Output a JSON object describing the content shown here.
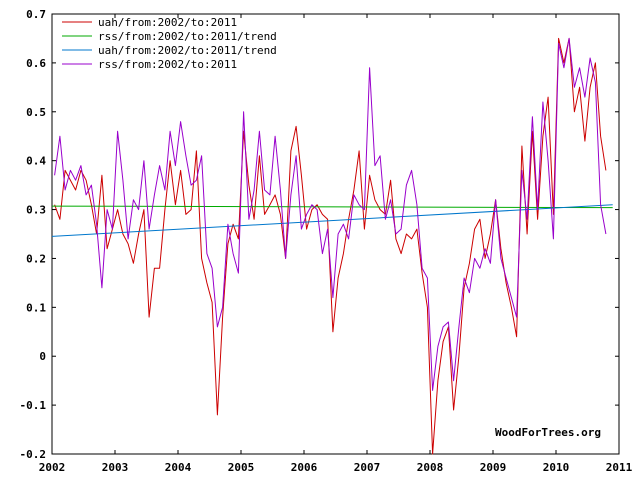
{
  "chart_data": {
    "type": "line",
    "title": "",
    "xlabel": "",
    "ylabel": "",
    "xlim": [
      2002,
      2011
    ],
    "ylim": [
      -0.2,
      0.7
    ],
    "grid": false,
    "legend_position": "top-left",
    "x_ticks": [
      "2002",
      "2003",
      "2004",
      "2005",
      "2006",
      "2007",
      "2008",
      "2009",
      "2010",
      "2011"
    ],
    "y_ticks": [
      "-0.2",
      "-0.1",
      "0",
      "0.1",
      "0.2",
      "0.3",
      "0.4",
      "0.5",
      "0.6",
      "0.7"
    ],
    "watermark": "WoodForTrees.org",
    "series": [
      {
        "name": "uah/from:2002/to:2011",
        "color": "#cc0000",
        "x_start": 2002.0417,
        "x_step": 0.08333,
        "values": [
          0.31,
          0.28,
          0.38,
          0.36,
          0.34,
          0.38,
          0.36,
          0.31,
          0.25,
          0.37,
          0.22,
          0.26,
          0.3,
          0.25,
          0.23,
          0.19,
          0.25,
          0.3,
          0.08,
          0.18,
          0.18,
          0.3,
          0.4,
          0.31,
          0.38,
          0.29,
          0.3,
          0.42,
          0.2,
          0.15,
          0.11,
          -0.12,
          0.08,
          0.23,
          0.27,
          0.24,
          0.46,
          0.35,
          0.28,
          0.41,
          0.29,
          0.31,
          0.33,
          0.29,
          0.2,
          0.42,
          0.47,
          0.37,
          0.26,
          0.3,
          0.31,
          0.29,
          0.28,
          0.05,
          0.16,
          0.21,
          0.28,
          0.34,
          0.42,
          0.26,
          0.37,
          0.32,
          0.3,
          0.29,
          0.36,
          0.24,
          0.21,
          0.25,
          0.24,
          0.26,
          0.17,
          0.1,
          -0.2,
          -0.05,
          0.03,
          0.06,
          -0.11,
          0.0,
          0.14,
          0.19,
          0.26,
          0.28,
          0.2,
          0.25,
          0.32,
          0.22,
          0.15,
          0.1,
          0.04,
          0.43,
          0.25,
          0.46,
          0.28,
          0.45,
          0.53,
          0.29,
          0.65,
          0.6,
          0.65,
          0.5,
          0.55,
          0.44,
          0.55,
          0.6,
          0.45,
          0.38
        ]
      },
      {
        "name": "rss/from:2002/to:2011/trend",
        "color": "#00aa00",
        "x_start": 2002.0,
        "x_end": 2010.9,
        "y_start": 0.307,
        "y_end": 0.304
      },
      {
        "name": "uah/from:2002/to:2011/trend",
        "color": "#0077cc",
        "x_start": 2002.0,
        "x_end": 2010.9,
        "y_start": 0.245,
        "y_end": 0.31
      },
      {
        "name": "rss/from:2002/to:2011",
        "color": "#9900cc",
        "x_start": 2002.0417,
        "x_step": 0.08333,
        "values": [
          0.37,
          0.45,
          0.34,
          0.38,
          0.36,
          0.39,
          0.33,
          0.35,
          0.27,
          0.14,
          0.3,
          0.26,
          0.46,
          0.36,
          0.24,
          0.32,
          0.3,
          0.4,
          0.26,
          0.33,
          0.39,
          0.34,
          0.46,
          0.39,
          0.48,
          0.41,
          0.35,
          0.36,
          0.41,
          0.21,
          0.18,
          0.06,
          0.1,
          0.27,
          0.21,
          0.17,
          0.5,
          0.28,
          0.34,
          0.46,
          0.34,
          0.33,
          0.45,
          0.34,
          0.2,
          0.33,
          0.41,
          0.26,
          0.29,
          0.31,
          0.3,
          0.21,
          0.26,
          0.12,
          0.25,
          0.27,
          0.24,
          0.33,
          0.31,
          0.3,
          0.59,
          0.39,
          0.41,
          0.28,
          0.32,
          0.25,
          0.26,
          0.35,
          0.38,
          0.31,
          0.18,
          0.16,
          -0.07,
          0.02,
          0.06,
          0.07,
          -0.05,
          0.06,
          0.16,
          0.13,
          0.2,
          0.18,
          0.22,
          0.19,
          0.32,
          0.2,
          0.16,
          0.12,
          0.08,
          0.38,
          0.28,
          0.49,
          0.3,
          0.52,
          0.4,
          0.24,
          0.64,
          0.59,
          0.65,
          0.55,
          0.59,
          0.53,
          0.61,
          0.56,
          0.31,
          0.25
        ]
      }
    ]
  }
}
